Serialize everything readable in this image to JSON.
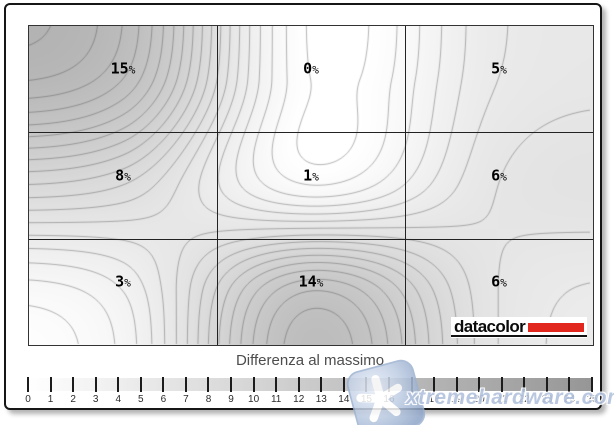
{
  "chart_data": {
    "type": "heatmap",
    "subtype": "contour-uniformity-map",
    "title": "Differenza al massimo",
    "grid": {
      "rows": 3,
      "cols": 3
    },
    "values": [
      [
        15,
        0,
        5
      ],
      [
        8,
        1,
        6
      ],
      [
        3,
        14,
        6
      ]
    ],
    "cell_labels": [
      [
        "15%",
        "0%",
        "5%"
      ],
      [
        "8%",
        "1%",
        "6%"
      ],
      [
        "3%",
        "14%",
        "6%"
      ]
    ],
    "value_suffix": "%",
    "contour_interval": 1,
    "colorbar": {
      "label": "Differenza al massimo",
      "min": 0,
      "max": 25,
      "ticks": [
        0,
        1,
        2,
        3,
        4,
        5,
        6,
        7,
        8,
        9,
        10,
        11,
        12,
        13,
        14,
        15,
        16,
        17,
        18,
        19,
        20,
        21,
        22,
        23,
        24,
        25
      ],
      "min_color": "#ffffff",
      "max_color": "#969696"
    },
    "line_color": "rgba(70,70,70,0.5)",
    "gridline_color": "#222222"
  },
  "branding": {
    "name": "datacolor",
    "bar_color": "#e2281e"
  },
  "watermark": {
    "text": "xtremehardware.com",
    "icon": "star-icon",
    "color": "#b3c3de"
  }
}
